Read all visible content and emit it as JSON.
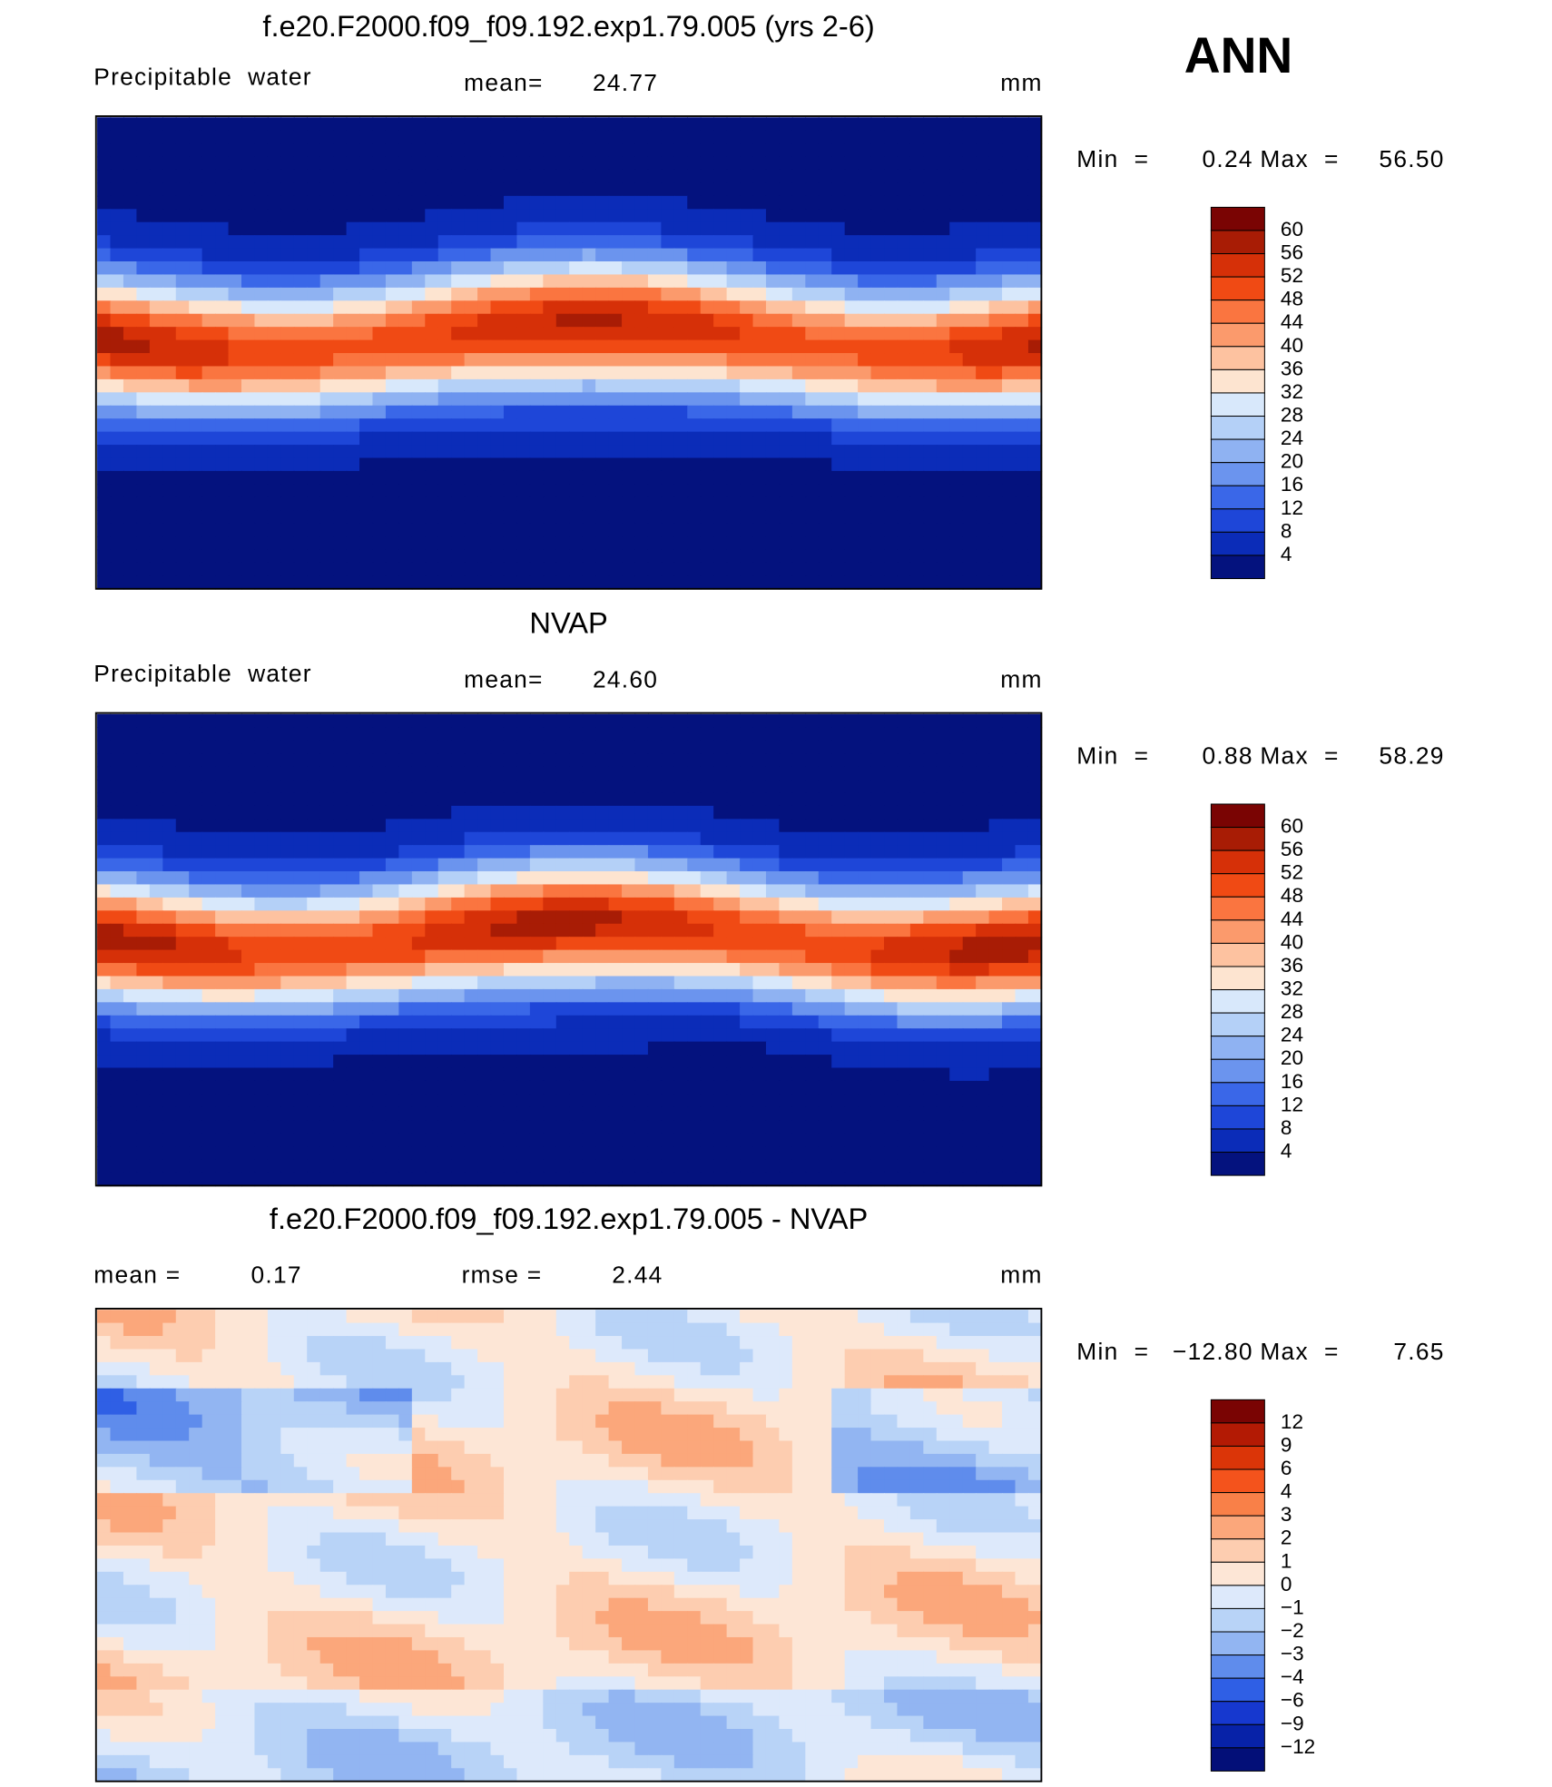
{
  "header": {
    "season": "ANN"
  },
  "panels": [
    {
      "title": "f.e20.F2000.f09_f09.192.exp1.79.005 (yrs 2-6)",
      "variable": "Precipitable  water",
      "stat1_label": "mean=",
      "stat1": "24.77",
      "units": "mm",
      "min_label": "Min  =",
      "min": "0.24",
      "max_label": "Max  =",
      "max": "56.50",
      "colorbar": {
        "levels": [
          60,
          56,
          52,
          48,
          44,
          40,
          36,
          32,
          28,
          24,
          20,
          16,
          12,
          8,
          4
        ],
        "colors": [
          "#7a0403",
          "#a81c05",
          "#d63008",
          "#f04a14",
          "#fa7540",
          "#fb9a6c",
          "#fdc2a0",
          "#fde4d0",
          "#d8e8fb",
          "#b4d0f7",
          "#8fb2f2",
          "#6b94ee",
          "#3a67e8",
          "#1e46d8",
          "#0b2cb8",
          "#04127e"
        ]
      }
    },
    {
      "title": "NVAP",
      "variable": "Precipitable  water",
      "stat1_label": "mean=",
      "stat1": "24.60",
      "units": "mm",
      "min_label": "Min  =",
      "min": "0.88",
      "max_label": "Max  =",
      "max": "58.29",
      "colorbar": {
        "levels": [
          60,
          56,
          52,
          48,
          44,
          40,
          36,
          32,
          28,
          24,
          20,
          16,
          12,
          8,
          4
        ],
        "colors": [
          "#7a0403",
          "#a81c05",
          "#d63008",
          "#f04a14",
          "#fa7540",
          "#fb9a6c",
          "#fdc2a0",
          "#fde4d0",
          "#d8e8fb",
          "#b4d0f7",
          "#8fb2f2",
          "#6b94ee",
          "#3a67e8",
          "#1e46d8",
          "#0b2cb8",
          "#04127e"
        ]
      }
    },
    {
      "title": "f.e20.F2000.f09_f09.192.exp1.79.005 - NVAP",
      "stat1_label": "mean =",
      "stat1": "0.17",
      "stat2_label": "rmse =",
      "stat2": "2.44",
      "units": "mm",
      "min_label": "Min  =",
      "min": "−12.80",
      "max_label": "Max  =",
      "max": "7.65",
      "colorbar": {
        "levels": [
          12,
          9,
          6,
          4,
          3,
          2,
          1,
          0,
          {
            "value": -1,
            "label": "−1"
          },
          {
            "value": -2,
            "label": "−2"
          },
          {
            "value": -3,
            "label": "−3"
          },
          {
            "value": -4,
            "label": "−4"
          },
          {
            "value": -6,
            "label": "−6"
          },
          {
            "value": -9,
            "label": "−9"
          },
          {
            "value": -12,
            "label": "−12"
          }
        ],
        "colors": [
          "#7a0403",
          "#b31a04",
          "#db3508",
          "#f4531c",
          "#f98048",
          "#fba77b",
          "#fdcdb0",
          "#fde6d6",
          "#dde9fb",
          "#b8d3f7",
          "#92b5f2",
          "#5f8cec",
          "#2f5fe5",
          "#1638cf",
          "#0722a8",
          "#030f78"
        ]
      }
    }
  ]
}
